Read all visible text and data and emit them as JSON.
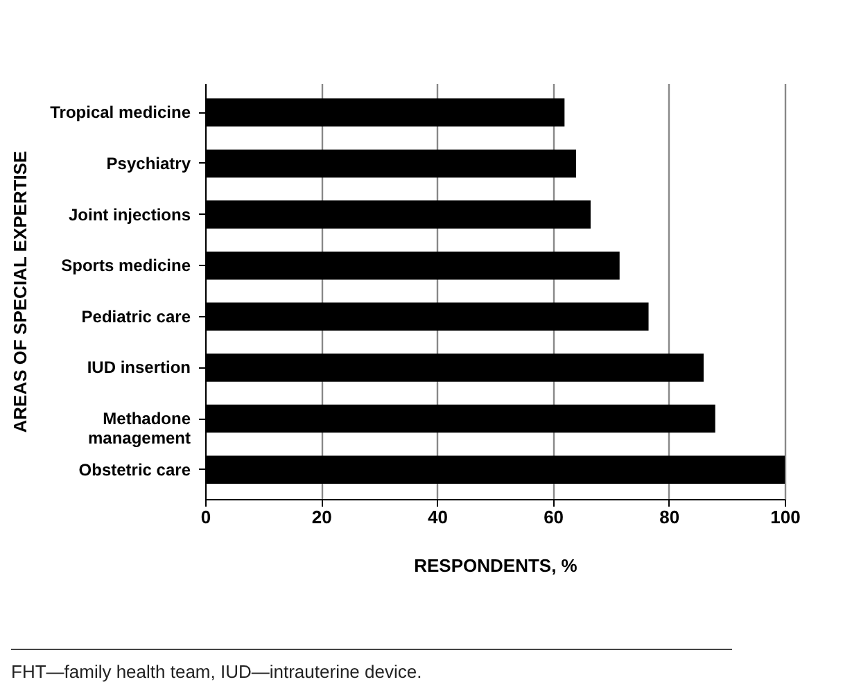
{
  "chart_data": {
    "type": "bar",
    "orientation": "horizontal",
    "xlabel": "RESPONDENTS, %",
    "ylabel": "AREAS OF SPECIAL EXPERTISE",
    "categories": [
      "Tropical medicine",
      "Psychiatry",
      "Joint injections",
      "Sports medicine",
      "Pediatric care",
      "IUD insertion",
      "Methadone management",
      "Obstetric care"
    ],
    "values": [
      62,
      64,
      66.5,
      71.5,
      76.5,
      86,
      88,
      100
    ],
    "color": "#000000",
    "xlim": [
      0,
      100
    ],
    "xticks": [
      0,
      20,
      40,
      60,
      80,
      100
    ],
    "grid": "x",
    "annotations": [
      "FHT—family health team, IUD—intrauterine device."
    ]
  }
}
